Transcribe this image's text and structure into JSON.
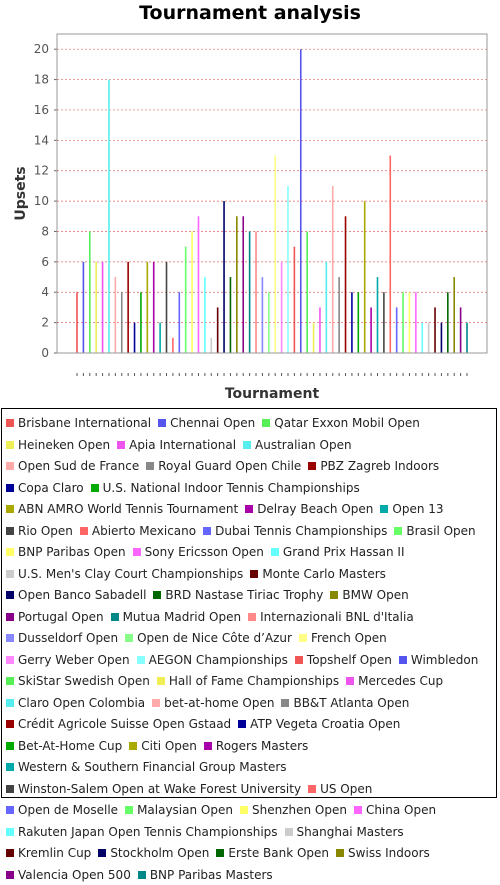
{
  "chart_data": {
    "type": "bar",
    "title": "Tournament analysis",
    "xlabel": "Tournament",
    "ylabel": "Upsets",
    "ylim": [
      0,
      21
    ],
    "yticks": [
      0,
      2,
      4,
      6,
      8,
      10,
      12,
      14,
      16,
      18,
      20
    ],
    "grid": true,
    "legend_position": "bottom",
    "series": [
      {
        "name": "Brisbane International",
        "value": 4,
        "color": "#ee5555"
      },
      {
        "name": "Chennai Open",
        "value": 6,
        "color": "#5555ee"
      },
      {
        "name": "Qatar Exxon Mobil Open",
        "value": 8,
        "color": "#55ee55"
      },
      {
        "name": "Heineken Open",
        "value": 6,
        "color": "#eeee55"
      },
      {
        "name": "Apia International",
        "value": 6,
        "color": "#ee55ee"
      },
      {
        "name": "Australian Open",
        "value": 18,
        "color": "#55eeee"
      },
      {
        "name": "Open Sud de France",
        "value": 5,
        "color": "#ffaaaa"
      },
      {
        "name": "Royal Guard Open Chile",
        "value": 4,
        "color": "#888888"
      },
      {
        "name": "PBZ Zagreb Indoors",
        "value": 6,
        "color": "#990000"
      },
      {
        "name": "Copa Claro",
        "value": 2,
        "color": "#000099"
      },
      {
        "name": "U.S. National Indoor Tennis Championships",
        "value": 4,
        "color": "#00aa00"
      },
      {
        "name": "ABN AMRO World Tennis Tournament",
        "value": 6,
        "color": "#aaaa00"
      },
      {
        "name": "Delray Beach Open",
        "value": 6,
        "color": "#aa00aa"
      },
      {
        "name": "Open 13",
        "value": 2,
        "color": "#00aaaa"
      },
      {
        "name": "Rio Open",
        "value": 6,
        "color": "#444444"
      },
      {
        "name": "Abierto Mexicano",
        "value": 1,
        "color": "#ff6666"
      },
      {
        "name": "Dubai Tennis Championships",
        "value": 4,
        "color": "#6666ff"
      },
      {
        "name": "Brasil Open",
        "value": 7,
        "color": "#66ff66"
      },
      {
        "name": "BNP Paribas Open",
        "value": 8,
        "color": "#ffff66"
      },
      {
        "name": "Sony Ericsson Open",
        "value": 9,
        "color": "#ff66ff"
      },
      {
        "name": "Grand Prix Hassan II",
        "value": 5,
        "color": "#66ffff"
      },
      {
        "name": "U.S. Men's Clay Court Championships",
        "value": 1,
        "color": "#cccccc"
      },
      {
        "name": "Monte Carlo Masters",
        "value": 3,
        "color": "#660000"
      },
      {
        "name": "Open Banco Sabadell",
        "value": 10,
        "color": "#000066"
      },
      {
        "name": "BRD Nastase Tiriac Trophy",
        "value": 5,
        "color": "#006600"
      },
      {
        "name": "BMW Open",
        "value": 9,
        "color": "#888800"
      },
      {
        "name": "Portugal Open",
        "value": 9,
        "color": "#880088"
      },
      {
        "name": "Mutua Madrid Open",
        "value": 8,
        "color": "#008888"
      },
      {
        "name": "Internazionali BNL d'Italia",
        "value": 8,
        "color": "#ff8888"
      },
      {
        "name": "Dusseldorf Open",
        "value": 5,
        "color": "#8888ff"
      },
      {
        "name": "Open de Nice Côte d’Azur",
        "value": 4,
        "color": "#88ff88"
      },
      {
        "name": "French Open",
        "value": 13,
        "color": "#ffff88"
      },
      {
        "name": "Gerry Weber Open",
        "value": 6,
        "color": "#ff88ff"
      },
      {
        "name": "AEGON Championships",
        "value": 11,
        "color": "#88ffff"
      },
      {
        "name": "Topshelf Open",
        "value": 7,
        "color": "#ee5555"
      },
      {
        "name": "Wimbledon",
        "value": 20,
        "color": "#5555ee"
      },
      {
        "name": "SkiStar Swedish Open",
        "value": 8,
        "color": "#55ee55"
      },
      {
        "name": "Hall of Fame Championships",
        "value": 2,
        "color": "#eeee55"
      },
      {
        "name": "Mercedes Cup",
        "value": 3,
        "color": "#ee55ee"
      },
      {
        "name": "Claro Open Colombia",
        "value": 6,
        "color": "#55eeee"
      },
      {
        "name": "bet-at-home Open",
        "value": 11,
        "color": "#ffaaaa"
      },
      {
        "name": "BB&T Atlanta Open",
        "value": 5,
        "color": "#888888"
      },
      {
        "name": "Crédit Agricole Suisse Open Gstaad",
        "value": 9,
        "color": "#990000"
      },
      {
        "name": "ATP Vegeta Croatia Open",
        "value": 4,
        "color": "#000099"
      },
      {
        "name": "Bet-At-Home Cup",
        "value": 4,
        "color": "#00aa00"
      },
      {
        "name": "Citi Open",
        "value": 10,
        "color": "#aaaa00"
      },
      {
        "name": "Rogers Masters",
        "value": 3,
        "color": "#aa00aa"
      },
      {
        "name": "Western & Southern Financial Group Masters",
        "value": 5,
        "color": "#00aaaa"
      },
      {
        "name": "Winston-Salem Open at Wake Forest University",
        "value": 4,
        "color": "#444444"
      },
      {
        "name": "US Open",
        "value": 13,
        "color": "#ff6666"
      },
      {
        "name": "Open de Moselle",
        "value": 3,
        "color": "#6666ff"
      },
      {
        "name": "Malaysian Open",
        "value": 4,
        "color": "#66ff66"
      },
      {
        "name": "Shenzhen Open",
        "value": 4,
        "color": "#ffff66"
      },
      {
        "name": "China Open",
        "value": 4,
        "color": "#ff66ff"
      },
      {
        "name": "Rakuten Japan Open Tennis Championships",
        "value": 2,
        "color": "#66ffff"
      },
      {
        "name": "Shanghai Masters",
        "value": 2,
        "color": "#cccccc"
      },
      {
        "name": "Kremlin Cup",
        "value": 3,
        "color": "#660000"
      },
      {
        "name": "Stockholm Open",
        "value": 2,
        "color": "#000066"
      },
      {
        "name": "Erste Bank Open",
        "value": 4,
        "color": "#006600"
      },
      {
        "name": "Swiss Indoors",
        "value": 5,
        "color": "#888800"
      },
      {
        "name": "Valencia Open 500",
        "value": 3,
        "color": "#880088"
      },
      {
        "name": "BNP Paribas Masters",
        "value": 2,
        "color": "#008888"
      }
    ]
  }
}
